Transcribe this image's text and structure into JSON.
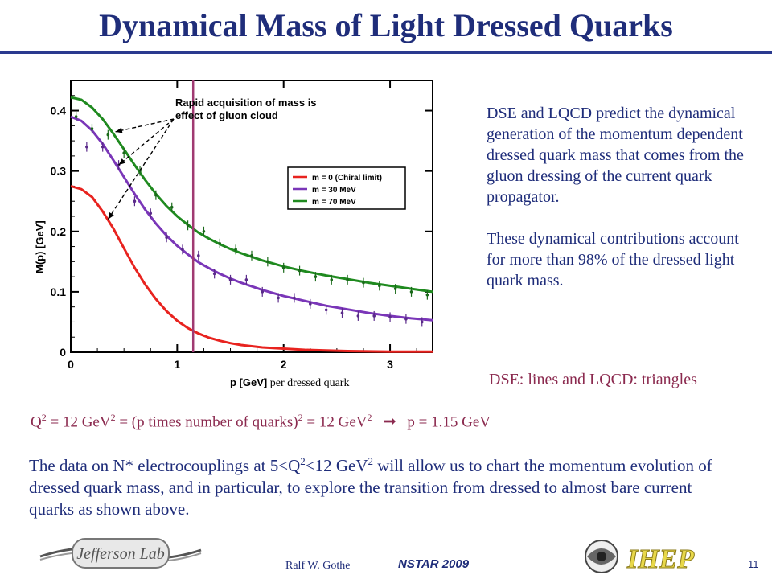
{
  "slide": {
    "title": "Dynamical Mass of Light Dressed Quarks",
    "description_1": "DSE and LQCD predict  the dynamical generation of the momentum dependent dressed quark mass that comes from the gluon dressing of the current quark propagator.",
    "description_2": "These dynamical contributions account for more than 98% of the dressed light quark mass.",
    "dse_note": "DSE: lines and LQCD: triangles",
    "q2_line": {
      "q": "Q",
      "exp2": "2",
      "part1": " = 12 GeV",
      "part2": " = (p times number of quarks)",
      "part3": " = 12 GeV",
      "arrow": "➞",
      "result": "p = 1.15 GeV"
    },
    "body": {
      "part1": "The data on N* electrocouplings at 5<Q",
      "part2": "<12 GeV",
      "part3": " will allow us to chart the momentum evolution of dressed quark mass, and in particular, to explore the transition from dressed to almost bare current quarks as shown above."
    },
    "footer": {
      "author": "Ralf  W. Gothe",
      "conference": "NSTAR 2009",
      "page_number": "11",
      "jlab_logo_text": "Jefferson Lab",
      "ihep_logo_text": "IHEP"
    }
  },
  "chart_data": {
    "type": "line",
    "xlabel": "p [GeV]",
    "xlabel_suffix": " per dressed quark",
    "ylabel": "M(p) [GeV]",
    "xlim": [
      0,
      3.4
    ],
    "ylim": [
      0,
      0.45
    ],
    "x_ticks": [
      0,
      1,
      2,
      3
    ],
    "x_tick_labels": [
      "0",
      "1",
      "2",
      "3"
    ],
    "y_ticks": [
      0,
      0.1,
      0.2,
      0.3,
      0.4
    ],
    "y_tick_labels": [
      "0",
      "0.1",
      "0.2",
      "0.3",
      "0.4"
    ],
    "annotation": "Rapid acquisition of mass is effect of gluon cloud",
    "vertical_marker_x": 1.15,
    "series": [
      {
        "name": "m = 0 (Chiral limit)",
        "color": "#e8231f",
        "m": 0.0,
        "x": [
          0,
          0.1,
          0.2,
          0.3,
          0.4,
          0.5,
          0.6,
          0.7,
          0.8,
          0.9,
          1.0,
          1.1,
          1.2,
          1.3,
          1.4,
          1.5,
          1.6,
          1.8,
          2.0,
          2.2,
          2.4,
          2.6,
          2.8,
          3.0,
          3.2,
          3.4
        ],
        "y": [
          0.275,
          0.27,
          0.257,
          0.233,
          0.205,
          0.172,
          0.14,
          0.112,
          0.088,
          0.068,
          0.052,
          0.04,
          0.031,
          0.024,
          0.019,
          0.015,
          0.012,
          0.008,
          0.006,
          0.004,
          0.003,
          0.002,
          0.0015,
          0.001,
          0.001,
          0.001
        ]
      },
      {
        "name": "m = 30 MeV",
        "color": "#7a36b8",
        "m": 0.03,
        "x": [
          0,
          0.1,
          0.2,
          0.3,
          0.4,
          0.5,
          0.6,
          0.7,
          0.8,
          0.9,
          1.0,
          1.1,
          1.2,
          1.3,
          1.4,
          1.5,
          1.6,
          1.8,
          2.0,
          2.2,
          2.4,
          2.6,
          2.8,
          3.0,
          3.2,
          3.4
        ],
        "y": [
          0.39,
          0.383,
          0.367,
          0.345,
          0.318,
          0.29,
          0.262,
          0.236,
          0.213,
          0.193,
          0.176,
          0.162,
          0.149,
          0.139,
          0.13,
          0.122,
          0.115,
          0.103,
          0.093,
          0.085,
          0.077,
          0.071,
          0.065,
          0.06,
          0.056,
          0.053
        ]
      },
      {
        "name": "m = 70 MeV",
        "color": "#1f8a1f",
        "m": 0.07,
        "x": [
          0,
          0.1,
          0.2,
          0.3,
          0.4,
          0.5,
          0.6,
          0.7,
          0.8,
          0.9,
          1.0,
          1.1,
          1.2,
          1.3,
          1.4,
          1.5,
          1.6,
          1.8,
          2.0,
          2.2,
          2.4,
          2.6,
          2.8,
          3.0,
          3.2,
          3.4
        ],
        "y": [
          0.422,
          0.418,
          0.405,
          0.386,
          0.362,
          0.336,
          0.31,
          0.285,
          0.262,
          0.242,
          0.225,
          0.211,
          0.198,
          0.188,
          0.179,
          0.171,
          0.164,
          0.152,
          0.142,
          0.134,
          0.127,
          0.121,
          0.115,
          0.11,
          0.105,
          0.1
        ]
      }
    ],
    "lattice_points_30MeV": {
      "x": [
        0.15,
        0.3,
        0.45,
        0.6,
        0.75,
        0.9,
        1.05,
        1.2,
        1.35,
        1.5,
        1.65,
        1.8,
        1.95,
        2.1,
        2.25,
        2.4,
        2.55,
        2.7,
        2.85,
        3.0,
        3.15,
        3.3
      ],
      "y": [
        0.34,
        0.34,
        0.31,
        0.25,
        0.23,
        0.19,
        0.17,
        0.16,
        0.13,
        0.12,
        0.12,
        0.1,
        0.09,
        0.09,
        0.08,
        0.07,
        0.065,
        0.06,
        0.06,
        0.058,
        0.055,
        0.05
      ]
    },
    "lattice_points_70MeV": {
      "x": [
        0.05,
        0.2,
        0.35,
        0.5,
        0.65,
        0.8,
        0.95,
        1.1,
        1.25,
        1.4,
        1.55,
        1.7,
        1.85,
        2.0,
        2.15,
        2.3,
        2.45,
        2.6,
        2.75,
        2.9,
        3.05,
        3.2,
        3.35
      ],
      "y": [
        0.39,
        0.37,
        0.36,
        0.33,
        0.3,
        0.26,
        0.24,
        0.21,
        0.2,
        0.18,
        0.17,
        0.16,
        0.15,
        0.14,
        0.135,
        0.125,
        0.12,
        0.12,
        0.115,
        0.11,
        0.105,
        0.1,
        0.095
      ]
    }
  }
}
